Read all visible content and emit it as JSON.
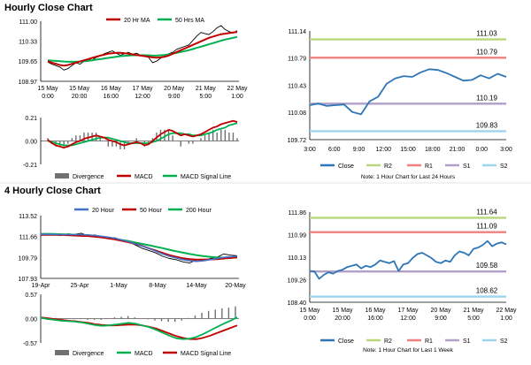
{
  "section_titles": [
    "Hourly Close Chart",
    "4 Hourly Close Chart"
  ],
  "chart_data": [
    {
      "id": "hourly-price",
      "type": "line",
      "ylim": [
        108.97,
        111.0
      ],
      "yticks": [
        "111.00",
        "110.33",
        "109.65",
        "108.97"
      ],
      "xticks": [
        "15 May\n0:00",
        "15 May\n20:00",
        "16 May\n16:00",
        "17 May\n12:00",
        "20 May\n9:00",
        "21 May\n5:00",
        "22 May\n1:00"
      ],
      "legend": [
        "20 Hr MA",
        "50 Hrs MA"
      ],
      "colors": {
        "price": "#000000",
        "ma1": "#c00000",
        "ma2": "#00b050"
      },
      "price_points": [
        109.62,
        109.55,
        109.5,
        109.45,
        109.35,
        109.4,
        109.5,
        109.6,
        109.55,
        109.65,
        109.72,
        109.68,
        109.78,
        109.82,
        109.9,
        109.95,
        110.0,
        109.92,
        109.85,
        109.9,
        109.95,
        109.88,
        109.92,
        109.85,
        109.82,
        109.78,
        109.6,
        109.65,
        109.75,
        109.82,
        109.9,
        109.95,
        110.05,
        110.1,
        110.15,
        110.2,
        110.35,
        110.5,
        110.62,
        110.58,
        110.55,
        110.65,
        110.78,
        110.85,
        110.72,
        110.65,
        110.6,
        110.68
      ],
      "ma20_points": [
        109.65,
        109.6,
        109.56,
        109.52,
        109.5,
        109.52,
        109.56,
        109.6,
        109.64,
        109.68,
        109.72,
        109.76,
        109.8,
        109.84,
        109.87,
        109.9,
        109.92,
        109.93,
        109.93,
        109.92,
        109.9,
        109.88,
        109.86,
        109.84,
        109.82,
        109.8,
        109.78,
        109.77,
        109.78,
        109.8,
        109.84,
        109.9,
        109.96,
        110.02,
        110.08,
        110.14,
        110.2,
        110.26,
        110.32,
        110.38,
        110.44,
        110.48,
        110.52,
        110.56,
        110.58,
        110.6,
        110.62,
        110.64
      ],
      "ma50_points": [
        109.68,
        109.67,
        109.66,
        109.65,
        109.64,
        109.63,
        109.63,
        109.63,
        109.64,
        109.65,
        109.66,
        109.68,
        109.7,
        109.72,
        109.74,
        109.76,
        109.78,
        109.8,
        109.82,
        109.83,
        109.84,
        109.85,
        109.85,
        109.85,
        109.85,
        109.85,
        109.84,
        109.84,
        109.85,
        109.86,
        109.88,
        109.9,
        109.93,
        109.96,
        109.99,
        110.02,
        110.06,
        110.1,
        110.14,
        110.18,
        110.22,
        110.26,
        110.3,
        110.34,
        110.38,
        110.41,
        110.44,
        110.47
      ]
    },
    {
      "id": "hourly-macd",
      "type": "line",
      "ylim": [
        -0.21,
        0.21
      ],
      "yticks": [
        "0.21",
        "0.00",
        "-0.21"
      ],
      "legend": [
        "Divergence",
        "MACD",
        "MACD Signal Line"
      ],
      "colors": {
        "divergence": "#707070",
        "macd": "#c00000",
        "signal": "#00b050"
      },
      "macd_points": [
        0.01,
        -0.02,
        -0.04,
        -0.05,
        -0.06,
        -0.05,
        -0.03,
        -0.01,
        0.0,
        0.02,
        0.03,
        0.04,
        0.05,
        0.04,
        0.03,
        0.01,
        0.0,
        -0.01,
        -0.03,
        -0.04,
        -0.03,
        -0.02,
        -0.01,
        -0.02,
        -0.04,
        -0.03,
        0.0,
        0.03,
        0.06,
        0.08,
        0.1,
        0.09,
        0.07,
        0.05,
        0.06,
        0.05,
        0.04,
        0.05,
        0.06,
        0.08,
        0.1,
        0.12,
        0.13,
        0.15,
        0.16,
        0.17,
        0.18,
        0.17
      ],
      "signal_points": [
        0.0,
        -0.01,
        -0.02,
        -0.03,
        -0.04,
        -0.04,
        -0.04,
        -0.03,
        -0.02,
        -0.01,
        0.0,
        0.01,
        0.02,
        0.03,
        0.03,
        0.03,
        0.02,
        0.01,
        0.0,
        -0.01,
        -0.02,
        -0.02,
        -0.02,
        -0.02,
        -0.02,
        -0.02,
        -0.01,
        0.0,
        0.02,
        0.04,
        0.06,
        0.07,
        0.07,
        0.07,
        0.06,
        0.06,
        0.05,
        0.05,
        0.05,
        0.06,
        0.07,
        0.08,
        0.1,
        0.11,
        0.12,
        0.14,
        0.15,
        0.16
      ]
    },
    {
      "id": "hourly-24h",
      "type": "line",
      "ylim": [
        109.72,
        111.14
      ],
      "yticks": [
        "111.14",
        "110.79",
        "110.43",
        "110.08",
        "109.72"
      ],
      "xticks": [
        "3:00",
        "6:00",
        "9:00",
        "12:00",
        "15:00",
        "18:00",
        "21:00",
        "0:00",
        "3:00"
      ],
      "close_points": [
        110.17,
        110.19,
        110.16,
        110.17,
        110.18,
        110.08,
        110.05,
        110.22,
        110.28,
        110.45,
        110.52,
        110.55,
        110.54,
        110.6,
        110.64,
        110.63,
        110.59,
        110.54,
        110.49,
        110.5,
        110.56,
        110.52,
        110.58,
        110.54
      ],
      "levels": [
        {
          "name": "R2",
          "value": 111.03,
          "label": "111.03",
          "color": "#b7d77a"
        },
        {
          "name": "R1",
          "value": 110.79,
          "label": "110.79",
          "color": "#f08080"
        },
        {
          "name": "S1",
          "value": 110.19,
          "label": "110.19",
          "color": "#b19fc7"
        },
        {
          "name": "S2",
          "value": 109.83,
          "label": "109.83",
          "color": "#9fd4ee"
        }
      ],
      "legend": [
        "Close",
        "R2",
        "R1",
        "S1",
        "S2"
      ],
      "note": "Note: 1 Hour Chart for Last 24 Hours",
      "colors": {
        "close": "#2e75b6"
      }
    },
    {
      "id": "fourhourly-price",
      "type": "line",
      "ylim": [
        107.93,
        113.52
      ],
      "yticks": [
        "113.52",
        "111.66",
        "109.79",
        "107.93"
      ],
      "xticks": [
        "19-Apr",
        "25-Apr",
        "1-May",
        "8-May",
        "14-May",
        "20-May"
      ],
      "legend": [
        "20 Hour",
        "50 Hour",
        "200 Hour"
      ],
      "colors": {
        "price": "#000000",
        "ma20": "#4472c4",
        "ma50": "#c00000",
        "ma200": "#00b050"
      },
      "price_points": [
        111.9,
        111.85,
        111.8,
        111.75,
        111.9,
        111.85,
        111.95,
        111.7,
        111.8,
        111.6,
        111.5,
        111.55,
        111.3,
        111.2,
        110.9,
        110.6,
        110.4,
        110.2,
        109.9,
        109.7,
        109.6,
        109.4,
        109.3,
        109.6,
        109.5,
        109.7,
        109.8,
        110.1,
        110.0,
        109.95
      ],
      "ma20_points": [
        111.85,
        111.85,
        111.84,
        111.83,
        111.83,
        111.83,
        111.82,
        111.8,
        111.75,
        111.68,
        111.6,
        111.5,
        111.35,
        111.2,
        111.0,
        110.8,
        110.6,
        110.35,
        110.1,
        109.9,
        109.75,
        109.6,
        109.5,
        109.45,
        109.5,
        109.6,
        109.7,
        109.8,
        109.85,
        109.9
      ],
      "ma50_points": [
        111.8,
        111.8,
        111.8,
        111.8,
        111.78,
        111.75,
        111.72,
        111.7,
        111.65,
        111.58,
        111.5,
        111.4,
        111.28,
        111.15,
        111.0,
        110.82,
        110.6,
        110.4,
        110.2,
        110.0,
        109.85,
        109.72,
        109.65,
        109.6,
        109.6,
        109.62,
        109.65,
        109.7,
        109.75,
        109.8
      ],
      "ma200_points": [
        111.9,
        111.9,
        111.88,
        111.86,
        111.84,
        111.82,
        111.78,
        111.74,
        111.7,
        111.62,
        111.54,
        111.45,
        111.35,
        111.25,
        111.12,
        111.0,
        110.88,
        110.75,
        110.62,
        110.48,
        110.35,
        110.22,
        110.1,
        110.0,
        109.92,
        109.85,
        109.8,
        109.78,
        109.78,
        109.8
      ]
    },
    {
      "id": "fourhourly-macd",
      "type": "line",
      "ylim": [
        -0.57,
        0.57
      ],
      "yticks": [
        "0.57",
        "0.00",
        "-0.57"
      ],
      "legend": [
        "Divergence",
        "MACD",
        "MACD Signal Line"
      ],
      "colors": {
        "divergence": "#707070",
        "macd": "#00b050",
        "signal": "#c00000"
      },
      "macd_points": [
        0.02,
        -0.01,
        -0.03,
        -0.05,
        -0.06,
        -0.07,
        -0.09,
        -0.12,
        -0.15,
        -0.17,
        -0.16,
        -0.14,
        -0.12,
        -0.1,
        -0.12,
        -0.16,
        -0.2,
        -0.26,
        -0.33,
        -0.4,
        -0.46,
        -0.48,
        -0.47,
        -0.43,
        -0.36,
        -0.28,
        -0.2,
        -0.12,
        -0.05,
        0.03
      ],
      "signal_points": [
        0.03,
        0.01,
        -0.01,
        -0.03,
        -0.05,
        -0.06,
        -0.08,
        -0.1,
        -0.13,
        -0.15,
        -0.16,
        -0.16,
        -0.15,
        -0.14,
        -0.14,
        -0.16,
        -0.19,
        -0.23,
        -0.29,
        -0.35,
        -0.41,
        -0.45,
        -0.48,
        -0.48,
        -0.45,
        -0.4,
        -0.34,
        -0.28,
        -0.22,
        -0.16
      ]
    },
    {
      "id": "fourhourly-week",
      "type": "line",
      "ylim": [
        108.4,
        111.86
      ],
      "yticks": [
        "111.86",
        "110.99",
        "110.13",
        "109.26",
        "108.40"
      ],
      "xticks": [
        "15 May\n0:00",
        "15 May\n20:00",
        "16 May\n16:00",
        "17 May\n12:00",
        "20 May\n9:00",
        "21 May\n5:00",
        "22 May\n1:00"
      ],
      "close_points": [
        109.6,
        109.58,
        109.3,
        109.45,
        109.55,
        109.5,
        109.6,
        109.65,
        109.75,
        109.8,
        109.85,
        109.7,
        109.8,
        109.75,
        109.85,
        110.0,
        109.95,
        109.9,
        109.98,
        109.6,
        109.85,
        109.9,
        110.1,
        110.25,
        110.3,
        110.2,
        110.1,
        109.95,
        109.9,
        110.0,
        109.95,
        110.2,
        110.35,
        110.3,
        110.2,
        110.45,
        110.5,
        110.6,
        110.75,
        110.55,
        110.65,
        110.7,
        110.62
      ],
      "levels": [
        {
          "name": "R2",
          "value": 111.64,
          "label": "111.64",
          "color": "#b7d77a"
        },
        {
          "name": "R1",
          "value": 111.09,
          "label": "111.09",
          "color": "#f08080"
        },
        {
          "name": "S1",
          "value": 109.58,
          "label": "109.58",
          "color": "#b19fc7"
        },
        {
          "name": "S2",
          "value": 108.62,
          "label": "108.62",
          "color": "#9fd4ee"
        }
      ],
      "legend": [
        "Close",
        "R2",
        "R1",
        "S1",
        "S2"
      ],
      "note": "Note: 1 Hour Chart for Last 1 Week",
      "colors": {
        "close": "#2e75b6"
      }
    }
  ]
}
